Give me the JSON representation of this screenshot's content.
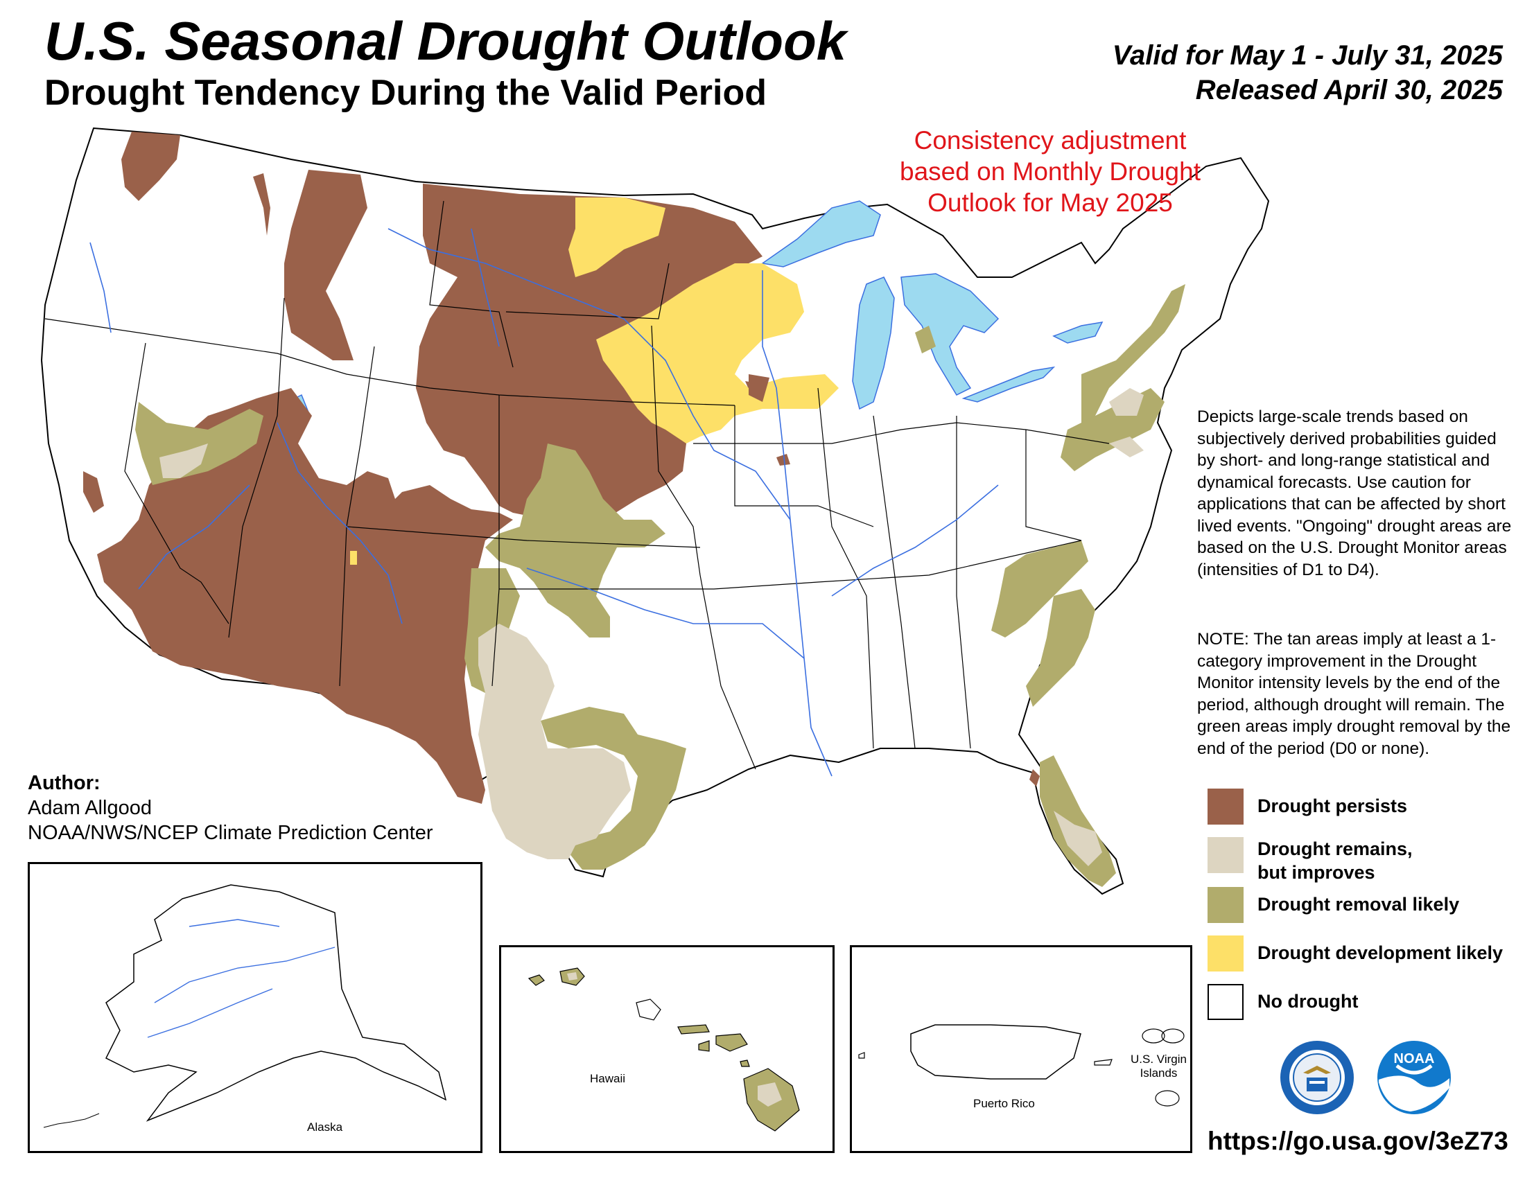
{
  "header": {
    "title": "U.S. Seasonal Drought Outlook",
    "subtitle": "Drought Tendency During the Valid Period",
    "valid_period": "Valid for May 1 - July 31, 2025",
    "released": "Released April 30, 2025"
  },
  "annotation": {
    "consistency_note": "Consistency adjustment based on Monthly Drought Outlook for May 2025",
    "color": "#e0151a"
  },
  "description": {
    "text": "Depicts large-scale trends based on subjectively derived probabilities guided by short- and long-range statistical and dynamical forecasts. Use caution for applications that can be affected by short lived events. \"Ongoing\" drought areas are based on the U.S. Drought Monitor areas (intensities of D1 to D4).",
    "note": "NOTE: The tan areas imply at least a 1-category improvement in the Drought Monitor intensity levels by the end of the period, although drought will remain. The green areas imply drought removal by the end of the period (D0 or none)."
  },
  "legend": [
    {
      "label": "Drought persists",
      "color": "#9a614a"
    },
    {
      "label": "Drought remains, but improves",
      "color": "#ddd5c1"
    },
    {
      "label": "Drought removal likely",
      "color": "#b1ac6c"
    },
    {
      "label": "Drought development likely",
      "color": "#fde068"
    },
    {
      "label": "No drought",
      "color": "#ffffff"
    }
  ],
  "author": {
    "label": "Author:",
    "name": "Adam Allgood",
    "org": "NOAA/NWS/NCEP Climate Prediction Center"
  },
  "insets": {
    "alaska": "Alaska",
    "hawaii": "Hawaii",
    "puerto_rico": "Puerto Rico",
    "virgin_islands": "U.S. Virgin Islands"
  },
  "footer": {
    "url": "https://go.usa.gov/3eZ73"
  },
  "logos": {
    "commerce": "department-of-commerce-seal",
    "noaa": "noaa-logo",
    "noaa_text": "NOAA"
  },
  "colors": {
    "water": "#9ddaf0",
    "river": "#3b6fe0",
    "border": "#000000"
  }
}
